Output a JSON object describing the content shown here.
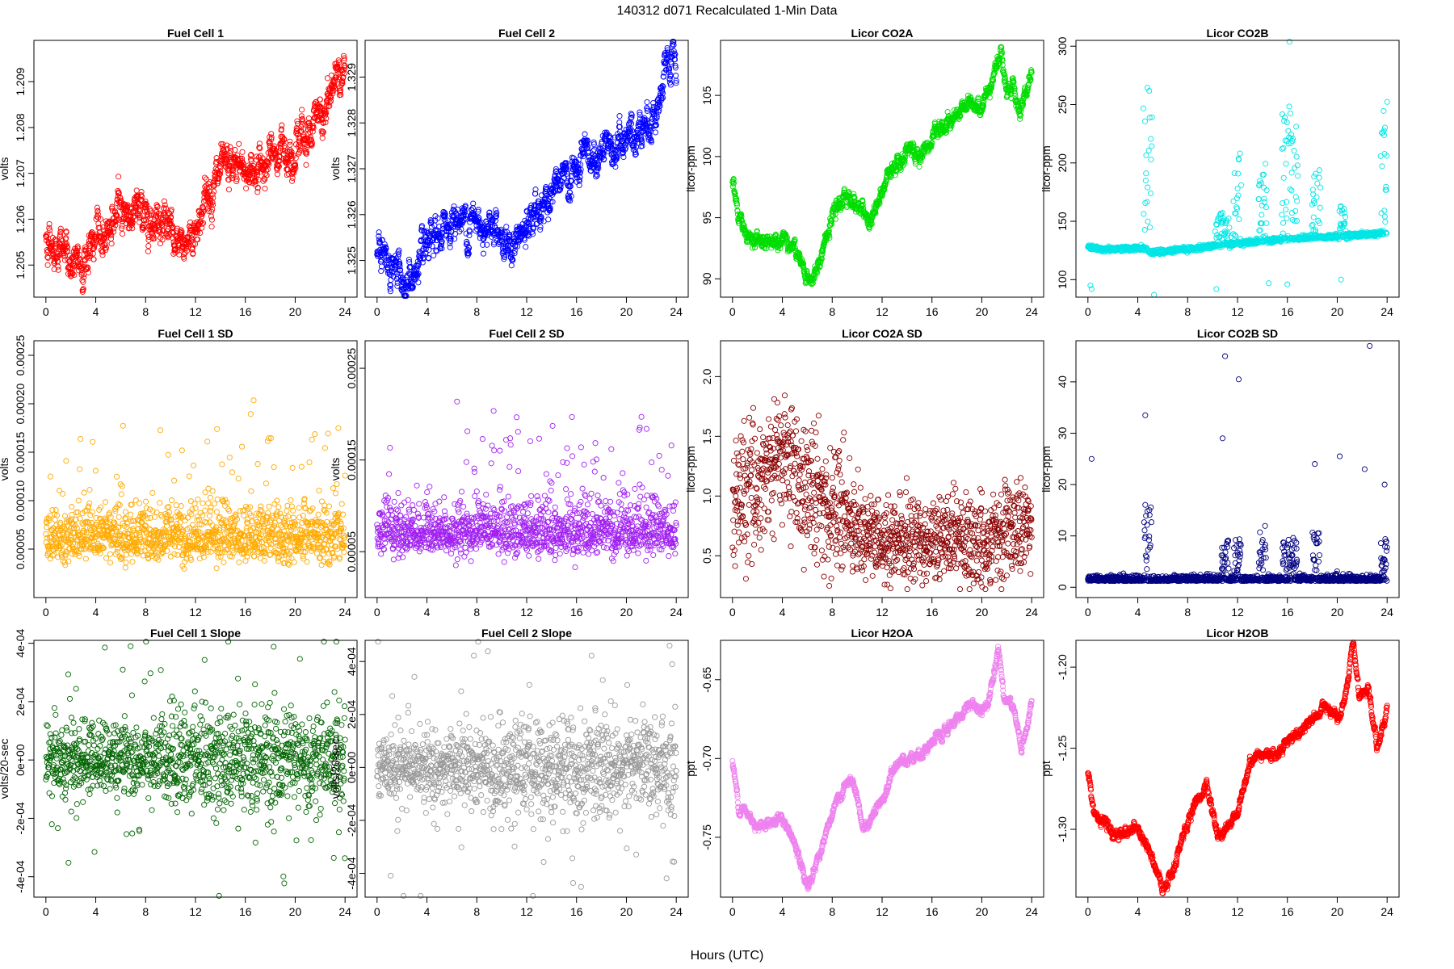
{
  "figure": {
    "title": "140312    d071    Recalculated 1-Min Data",
    "xlabel": "Hours (UTC)"
  },
  "chart_data": [
    {
      "type": "scatter",
      "title": "Fuel Cell 1",
      "ylabel": "volts",
      "color": "#ff0000",
      "xlim": [
        0,
        24
      ],
      "xticks": [
        "0",
        "4",
        "8",
        "12",
        "16",
        "20",
        "24"
      ],
      "ylim": [
        1.2043,
        1.2099
      ],
      "yticks": [
        1.205,
        1.206,
        1.207,
        1.208,
        1.209
      ],
      "yticklabels": [
        "1.205",
        "1.206",
        "1.207",
        "1.208",
        "1.209"
      ],
      "pattern": "trend",
      "series_knots": [
        [
          0,
          1.2056
        ],
        [
          1,
          1.2054
        ],
        [
          2.5,
          1.2049
        ],
        [
          4,
          1.2055
        ],
        [
          6,
          1.2062
        ],
        [
          8,
          1.2061
        ],
        [
          9.5,
          1.2061
        ],
        [
          10.5,
          1.2052
        ],
        [
          12,
          1.2058
        ],
        [
          13,
          1.2066
        ],
        [
          15,
          1.2071
        ],
        [
          17,
          1.2071
        ],
        [
          19,
          1.2075
        ],
        [
          21,
          1.2079
        ],
        [
          22.5,
          1.2083
        ],
        [
          23.5,
          1.2094
        ],
        [
          24,
          1.2093
        ]
      ],
      "noise": 0.00016
    },
    {
      "type": "scatter",
      "title": "Fuel Cell 2",
      "ylabel": "volts",
      "color": "#0000ff",
      "xlim": [
        0,
        24
      ],
      "xticks": [
        "0",
        "4",
        "8",
        "12",
        "16",
        "20",
        "24"
      ],
      "ylim": [
        1.3242,
        1.3298
      ],
      "yticks": [
        1.325,
        1.326,
        1.327,
        1.328,
        1.329
      ],
      "yticklabels": [
        "1.325",
        "1.326",
        "1.327",
        "1.328",
        "1.329"
      ],
      "pattern": "trend",
      "series_knots": [
        [
          0,
          1.3251
        ],
        [
          1,
          1.3249
        ],
        [
          2.5,
          1.3245
        ],
        [
          4,
          1.3251
        ],
        [
          6,
          1.3259
        ],
        [
          8,
          1.3258
        ],
        [
          9.5,
          1.3259
        ],
        [
          10.5,
          1.3252
        ],
        [
          12,
          1.3256
        ],
        [
          13,
          1.3262
        ],
        [
          15,
          1.3267
        ],
        [
          17,
          1.3271
        ],
        [
          19,
          1.3274
        ],
        [
          21,
          1.3279
        ],
        [
          22.5,
          1.3283
        ],
        [
          23.5,
          1.3293
        ],
        [
          24,
          1.3292
        ]
      ],
      "noise": 0.00015
    },
    {
      "type": "scatter",
      "title": "Licor CO2A",
      "ylabel": "licor-ppm",
      "color": "#00dd00",
      "xlim": [
        0,
        24
      ],
      "xticks": [
        "0",
        "4",
        "8",
        "12",
        "16",
        "20",
        "24"
      ],
      "ylim": [
        88.5,
        109.5
      ],
      "yticks": [
        90,
        95,
        100,
        105
      ],
      "yticklabels": [
        "90",
        "95",
        "100",
        "105"
      ],
      "pattern": "trend",
      "series_knots": [
        [
          0,
          97.5
        ],
        [
          0.5,
          95
        ],
        [
          1.5,
          93.2
        ],
        [
          3,
          93
        ],
        [
          4,
          93.8
        ],
        [
          5,
          92.5
        ],
        [
          6,
          89.8
        ],
        [
          6.8,
          90.5
        ],
        [
          7.5,
          93.5
        ],
        [
          9,
          97
        ],
        [
          10,
          96
        ],
        [
          11,
          94.5
        ],
        [
          12,
          97
        ],
        [
          13,
          99.5
        ],
        [
          14,
          100.5
        ],
        [
          15,
          100
        ],
        [
          16,
          101.2
        ],
        [
          17,
          102.5
        ],
        [
          18,
          103.5
        ],
        [
          19,
          104.5
        ],
        [
          20,
          104
        ],
        [
          21,
          107
        ],
        [
          21.5,
          108.5
        ],
        [
          22,
          105.5
        ],
        [
          22.5,
          106
        ],
        [
          23,
          103.5
        ],
        [
          24,
          107
        ]
      ],
      "noise": 0.25
    },
    {
      "type": "scatter",
      "title": "Licor CO2B",
      "ylabel": "licor-ppm",
      "color": "#00e5e5",
      "xlim": [
        0,
        24
      ],
      "xticks": [
        "0",
        "4",
        "8",
        "12",
        "16",
        "20",
        "24"
      ],
      "ylim": [
        85,
        305
      ],
      "yticks": [
        100,
        150,
        200,
        250,
        300
      ],
      "yticklabels": [
        "100",
        "150",
        "200",
        "250",
        "300"
      ],
      "pattern": "spiky",
      "base_knots": [
        [
          0,
          128
        ],
        [
          1,
          126
        ],
        [
          4.5,
          127
        ],
        [
          5,
          123
        ],
        [
          8,
          126
        ],
        [
          10,
          129
        ],
        [
          12,
          131
        ],
        [
          16,
          135
        ],
        [
          20,
          137
        ],
        [
          24,
          140
        ]
      ],
      "spike_centers": [
        4.8,
        10.5,
        11,
        12,
        14,
        15.9,
        16.5,
        18.3,
        20.5,
        23.8
      ],
      "spike_heights": [
        150,
        30,
        25,
        80,
        70,
        140,
        100,
        70,
        25,
        120
      ],
      "noise": 1.0
    },
    {
      "type": "scatter",
      "title": "Fuel Cell 1 SD",
      "ylabel": "volts",
      "color": "#ffaa00",
      "xlim": [
        0,
        24
      ],
      "xticks": [
        "0",
        "4",
        "8",
        "12",
        "16",
        "20",
        "24"
      ],
      "ylim": [
        0.0,
        0.000265
      ],
      "yticks": [
        5e-05,
        0.0001,
        0.00015,
        0.0002,
        0.00025
      ],
      "yticklabels": [
        "0.00005",
        "0.00010",
        "0.00015",
        "0.00020",
        "0.00025"
      ],
      "pattern": "positive",
      "level": 5.8e-05,
      "spread": 2.6e-05,
      "outliers": 0.07
    },
    {
      "type": "scatter",
      "title": "Fuel Cell 2 SD",
      "ylabel": "volts",
      "color": "#a020f0",
      "xlim": [
        0,
        24
      ],
      "xticks": [
        "0",
        "4",
        "8",
        "12",
        "16",
        "20",
        "24"
      ],
      "ylim": [
        0.0,
        0.00028
      ],
      "yticks": [
        5e-05,
        0.00015,
        0.00025
      ],
      "yticklabels": [
        "0.00005",
        "0.00015",
        "0.00025"
      ],
      "pattern": "positive",
      "level": 6.8e-05,
      "spread": 2.6e-05,
      "outliers": 0.07
    },
    {
      "type": "scatter",
      "title": "Licor CO2A SD",
      "ylabel": "licor-ppm",
      "color": "#8b0000",
      "xlim": [
        0,
        24
      ],
      "xticks": [
        "0",
        "4",
        "8",
        "12",
        "16",
        "20",
        "24"
      ],
      "ylim": [
        0.15,
        2.3
      ],
      "yticks": [
        0.5,
        1.0,
        1.5,
        2.0
      ],
      "yticklabels": [
        "0.5",
        "1.0",
        "1.5",
        "2.0"
      ],
      "pattern": "sdcurve",
      "sd_knots": [
        [
          0,
          0.9
        ],
        [
          2,
          1.1
        ],
        [
          4,
          1.35
        ],
        [
          6,
          1.05
        ],
        [
          9,
          0.85
        ],
        [
          10.5,
          0.7
        ],
        [
          12,
          0.6
        ],
        [
          16,
          0.65
        ],
        [
          20,
          0.6
        ],
        [
          24,
          0.8
        ]
      ],
      "spread": 0.24
    },
    {
      "type": "scatter",
      "title": "Licor CO2B SD",
      "ylabel": "licor-ppm",
      "color": "#000080",
      "xlim": [
        0,
        24
      ],
      "xticks": [
        "0",
        "4",
        "8",
        "12",
        "16",
        "20",
        "24"
      ],
      "ylim": [
        -2,
        48
      ],
      "yticks": [
        0,
        10,
        20,
        30,
        40
      ],
      "yticklabels": [
        "0",
        "10",
        "20",
        "30",
        "40"
      ],
      "pattern": "spikysd",
      "base": 1.2,
      "spike_centers": [
        4.8,
        11,
        12,
        14,
        15.9,
        16.5,
        18.3,
        23.8
      ],
      "spike_heights": [
        15,
        8,
        8,
        10,
        9,
        8,
        9,
        8
      ],
      "outlier_points": [
        [
          0.3,
          25
        ],
        [
          4.6,
          33.5
        ],
        [
          11,
          45
        ],
        [
          12.1,
          40.5
        ],
        [
          10.8,
          29
        ],
        [
          18.2,
          24
        ],
        [
          20.2,
          25.5
        ],
        [
          22.2,
          23
        ],
        [
          22.6,
          47
        ],
        [
          23.8,
          20
        ]
      ]
    },
    {
      "type": "scatter",
      "title": "Fuel Cell 1 Slope",
      "ylabel": "volts/20-sec",
      "color": "#006400",
      "xlim": [
        0,
        24
      ],
      "xticks": [
        "0",
        "4",
        "8",
        "12",
        "16",
        "20",
        "24"
      ],
      "ylim": [
        -0.00047,
        0.00041
      ],
      "yticks": [
        -0.0004,
        -0.0002,
        0,
        0.0002,
        0.0004
      ],
      "yticklabels": [
        "-4e-04",
        "-2e-04",
        "0e+00",
        "2e-04",
        "4e-04"
      ],
      "pattern": "zero",
      "spread": 6.5e-05,
      "outliers": 0.1
    },
    {
      "type": "scatter",
      "title": "Fuel Cell 2 Slope",
      "ylabel": "volts/20-sec",
      "color": "#999999",
      "xlim": [
        0,
        24
      ],
      "xticks": [
        "0",
        "4",
        "8",
        "12",
        "16",
        "20",
        "24"
      ],
      "ylim": [
        -0.00049,
        0.00048
      ],
      "yticks": [
        -0.0004,
        -0.0002,
        0,
        0.0002,
        0.0004
      ],
      "yticklabels": [
        "-4e-04",
        "-2e-04",
        "0e+00",
        "2e-04",
        "4e-04"
      ],
      "pattern": "zero",
      "spread": 7e-05,
      "outliers": 0.1
    },
    {
      "type": "scatter",
      "title": "Licor H2OA",
      "ylabel": "ppt",
      "color": "#ee82ee",
      "xlim": [
        0,
        24
      ],
      "xticks": [
        "0",
        "4",
        "8",
        "12",
        "16",
        "20",
        "24"
      ],
      "ylim": [
        -0.788,
        -0.625
      ],
      "yticks": [
        -0.75,
        -0.7,
        -0.65
      ],
      "yticklabels": [
        "-0.75",
        "-0.70",
        "-0.65"
      ],
      "pattern": "trend",
      "series_knots": [
        [
          0,
          -0.703
        ],
        [
          0.5,
          -0.73
        ],
        [
          2,
          -0.742
        ],
        [
          4,
          -0.738
        ],
        [
          5,
          -0.755
        ],
        [
          6,
          -0.782
        ],
        [
          7,
          -0.76
        ],
        [
          8.5,
          -0.725
        ],
        [
          9.5,
          -0.713
        ],
        [
          10.5,
          -0.745
        ],
        [
          11,
          -0.74
        ],
        [
          12,
          -0.728
        ],
        [
          13,
          -0.705
        ],
        [
          14,
          -0.7
        ],
        [
          15,
          -0.697
        ],
        [
          16,
          -0.69
        ],
        [
          17,
          -0.685
        ],
        [
          18,
          -0.675
        ],
        [
          19,
          -0.665
        ],
        [
          20,
          -0.67
        ],
        [
          20.5,
          -0.665
        ],
        [
          21.3,
          -0.628
        ],
        [
          21.8,
          -0.66
        ],
        [
          22.5,
          -0.667
        ],
        [
          23.2,
          -0.695
        ],
        [
          24,
          -0.665
        ]
      ],
      "noise": 0.0012
    },
    {
      "type": "scatter",
      "title": "Licor H2OB",
      "ylabel": "ppt",
      "color": "#ff0000",
      "xlim": [
        0,
        24
      ],
      "xticks": [
        "0",
        "4",
        "8",
        "12",
        "16",
        "20",
        "24"
      ],
      "ylim": [
        -1.3418,
        -1.1835
      ],
      "yticks": [
        -1.3,
        -1.25,
        -1.2
      ],
      "yticklabels": [
        "-1.30",
        "-1.25",
        "-1.20"
      ],
      "pattern": "trend",
      "series_knots": [
        [
          0,
          -1.265
        ],
        [
          0.5,
          -1.29
        ],
        [
          2,
          -1.303
        ],
        [
          4,
          -1.3
        ],
        [
          5,
          -1.315
        ],
        [
          6,
          -1.338
        ],
        [
          7,
          -1.32
        ],
        [
          8.5,
          -1.285
        ],
        [
          9.5,
          -1.275
        ],
        [
          10.5,
          -1.305
        ],
        [
          11,
          -1.3
        ],
        [
          12,
          -1.29
        ],
        [
          13,
          -1.258
        ],
        [
          14,
          -1.252
        ],
        [
          15,
          -1.255
        ],
        [
          16,
          -1.245
        ],
        [
          17,
          -1.24
        ],
        [
          18,
          -1.232
        ],
        [
          19,
          -1.225
        ],
        [
          20,
          -1.232
        ],
        [
          20.5,
          -1.225
        ],
        [
          21.3,
          -1.187
        ],
        [
          21.8,
          -1.22
        ],
        [
          22.5,
          -1.215
        ],
        [
          23.2,
          -1.25
        ],
        [
          24,
          -1.225
        ]
      ],
      "noise": 0.0012
    }
  ]
}
